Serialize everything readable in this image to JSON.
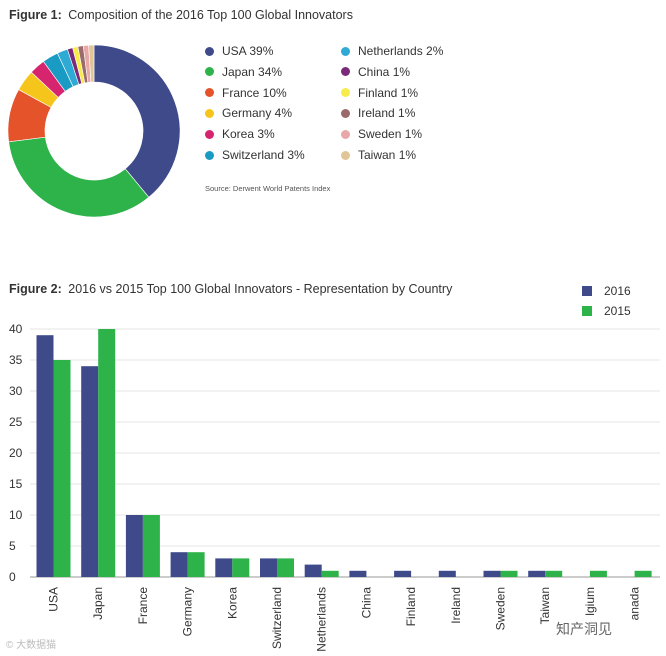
{
  "figure1": {
    "label": "Figure 1:",
    "title": "Composition of the 2016 Top 100 Global Innovators",
    "source": "Source: Derwent World Patents Index"
  },
  "figure2": {
    "label": "Figure 2:",
    "title": "2016 vs 2015 Top 100 Global Innovators - Representation by Country"
  },
  "watermarks": {
    "left": "© 大数据猫",
    "right": "知产洞见"
  },
  "chart_data": [
    {
      "type": "pie",
      "title": "Composition of the 2016 Top 100 Global Innovators",
      "labels": [
        "USA 39%",
        "Japan 34%",
        "France 10%",
        "Germany 4%",
        "Korea 3%",
        "Switzerland 3%",
        "Netherlands 2%",
        "China 1%",
        "Finland 1%",
        "Ireland 1%",
        "Sweden 1%",
        "Taiwan 1%"
      ],
      "categories": [
        "USA",
        "Japan",
        "France",
        "Germany",
        "Korea",
        "Switzerland",
        "Netherlands",
        "China",
        "Finland",
        "Ireland",
        "Sweden",
        "Taiwan"
      ],
      "values": [
        39,
        34,
        10,
        4,
        3,
        3,
        2,
        1,
        1,
        1,
        1,
        1
      ],
      "colors": [
        "#3f4a8a",
        "#2db34a",
        "#e5532a",
        "#f5c51c",
        "#d6246e",
        "#1a9bc4",
        "#2eaad4",
        "#7b2a7a",
        "#f7ec4a",
        "#9b6a6a",
        "#e8a8a8",
        "#e2c596"
      ],
      "legend_columns": [
        [
          "USA 39%",
          "Japan 34%",
          "France 10%",
          "Germany 4%",
          "Korea 3%",
          "Switzerland 3%"
        ],
        [
          "Netherlands 2%",
          "China 1%",
          "Finland 1%",
          "Ireland 1%",
          "Sweden 1%",
          "Taiwan 1%"
        ]
      ],
      "hole": "donut"
    },
    {
      "type": "bar",
      "title": "2016 vs 2015 Top 100 Global Innovators - Representation by Country",
      "categories": [
        "USA",
        "Japan",
        "France",
        "Germany",
        "Korea",
        "Switzerland",
        "Netherlands",
        "China",
        "Finland",
        "Ireland",
        "Sweden",
        "Taiwan",
        "Belgium",
        "Canada"
      ],
      "tick_labels": [
        "USA",
        "Japan",
        "France",
        "Germany",
        "Korea",
        "Switzerland",
        "Netherlands",
        "China",
        "Finland",
        "Ireland",
        "Sweden",
        "Taiwan",
        "lgium",
        "anada"
      ],
      "series": [
        {
          "name": "2016",
          "color": "#3f4a8a",
          "values": [
            39,
            34,
            10,
            4,
            3,
            3,
            2,
            1,
            1,
            1,
            1,
            1,
            0,
            0
          ]
        },
        {
          "name": "2015",
          "color": "#2db34a",
          "values": [
            35,
            40,
            10,
            4,
            3,
            3,
            1,
            0,
            0,
            0,
            1,
            1,
            1,
            1
          ]
        }
      ],
      "yticks": [
        "0",
        "5",
        "10",
        "15",
        "20",
        "25",
        "30",
        "35",
        "40"
      ],
      "ylim": [
        0,
        40
      ],
      "xlabel": "",
      "ylabel": "",
      "legend": "top-right"
    }
  ]
}
